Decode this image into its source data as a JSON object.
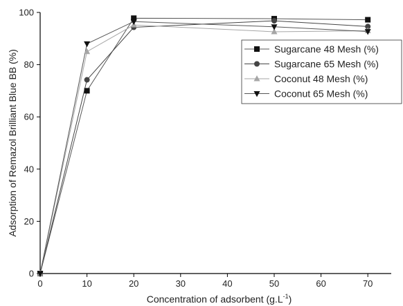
{
  "chart_data": {
    "type": "line",
    "title": "",
    "xlabel": "Concentration of adsorbent (g.L",
    "xlabel_sup": "-1",
    "xlabel_end": ")",
    "ylabel": "Adsorption of Remazol Brilliant Blue BB (%)",
    "xlim": [
      0,
      75
    ],
    "ylim": [
      0,
      100
    ],
    "xticks": [
      0,
      10,
      20,
      30,
      40,
      50,
      60,
      70
    ],
    "yticks": [
      0,
      20,
      40,
      60,
      80,
      100
    ],
    "grid": false,
    "legend_position": "top-right",
    "x": [
      0,
      10,
      20,
      50,
      70
    ],
    "series": [
      {
        "name": "Sugarcane 48 Mesh (%)",
        "marker": "square",
        "color": "#111111",
        "values": [
          0,
          70,
          97.8,
          97.6,
          97.2
        ]
      },
      {
        "name": "Sugarcane 65 Mesh (%)",
        "marker": "circle",
        "color": "#444444",
        "values": [
          0,
          74.2,
          94.3,
          96.8,
          94.6
        ]
      },
      {
        "name": "Coconut 48 Mesh (%)",
        "marker": "triangle-up",
        "color": "#a6a6a6",
        "values": [
          0,
          85,
          95.2,
          92.6,
          93
        ]
      },
      {
        "name": "Coconut 65 Mesh (%)",
        "marker": "triangle-down",
        "color": "#111111",
        "values": [
          0,
          88,
          96.5,
          94.5,
          92.7
        ]
      }
    ]
  }
}
